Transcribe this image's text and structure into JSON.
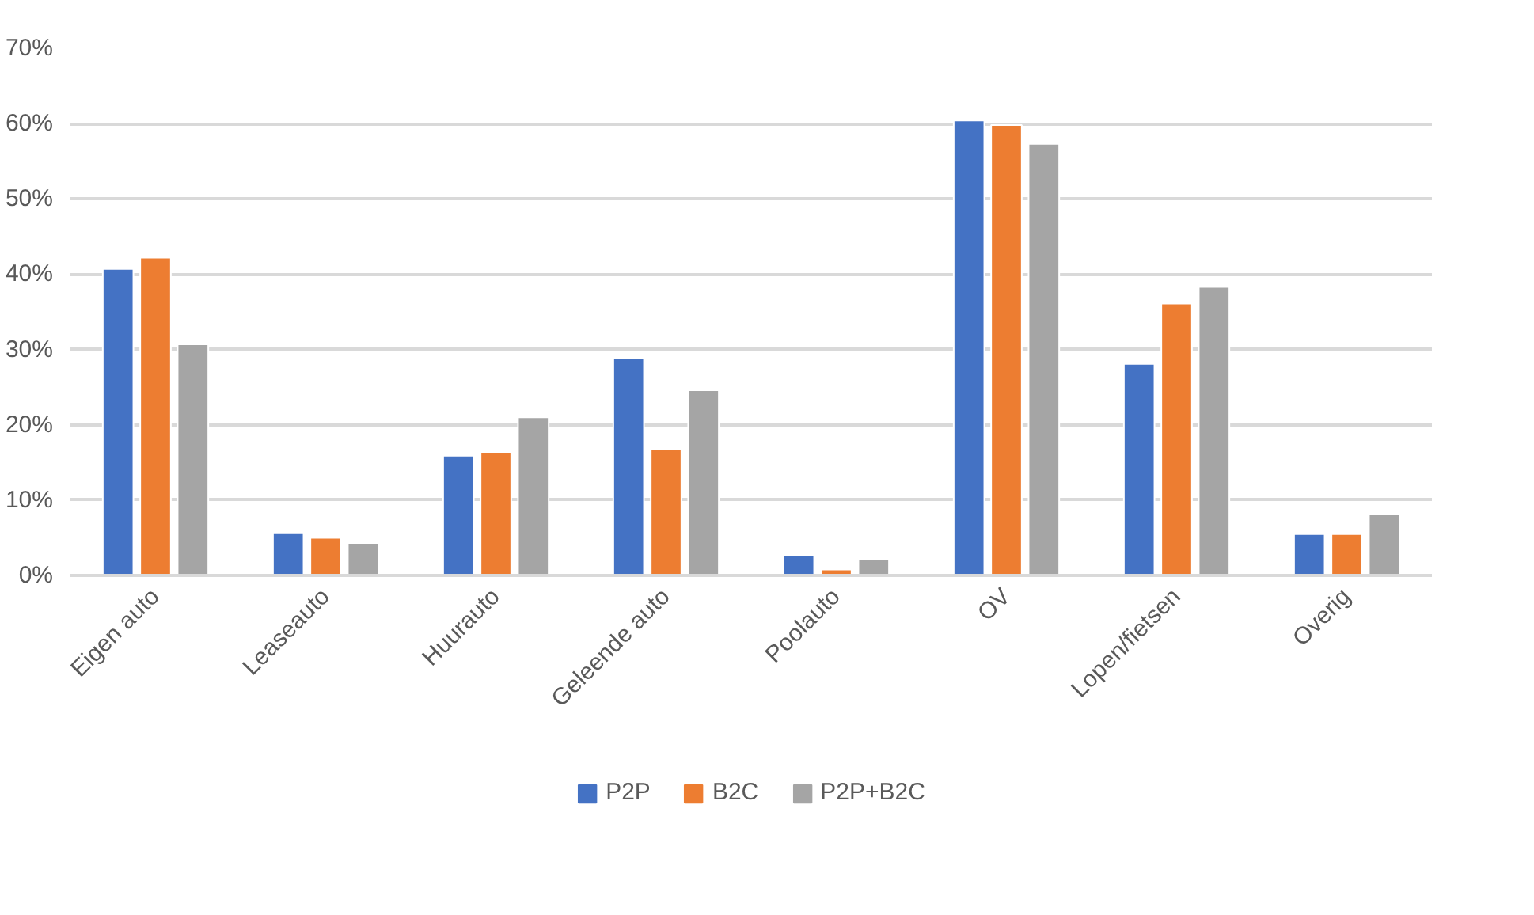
{
  "chart_data": {
    "type": "bar",
    "categories": [
      "Eigen auto",
      "Leaseauto",
      "Huurauto",
      "Geleende auto",
      "Poolauto",
      "OV",
      "Lopen/fietsen",
      "Overig"
    ],
    "series": [
      {
        "name": "P2P",
        "color": "#4472c4",
        "values": [
          40.7,
          5.6,
          15.9,
          28.8,
          2.7,
          60.4,
          28.1,
          5.5
        ]
      },
      {
        "name": "B2C",
        "color": "#ed7d31",
        "values": [
          42.2,
          5.0,
          16.4,
          16.7,
          0.8,
          59.8,
          36.1,
          5.5
        ]
      },
      {
        "name": "P2P+B2C",
        "color": "#a5a5a5",
        "values": [
          30.7,
          4.3,
          21.0,
          24.6,
          2.1,
          57.3,
          38.3,
          8.1
        ]
      }
    ],
    "ylim": [
      0,
      70
    ],
    "yticks": [
      {
        "value": 0,
        "label": "0%"
      },
      {
        "value": 10,
        "label": "10%"
      },
      {
        "value": 20,
        "label": "20%"
      },
      {
        "value": 30,
        "label": "30%"
      },
      {
        "value": 40,
        "label": "40%"
      },
      {
        "value": 50,
        "label": "50%"
      },
      {
        "value": 60,
        "label": "60%"
      },
      {
        "value": 70,
        "label": "70%"
      }
    ],
    "grid": "y",
    "legend": "bottom"
  }
}
